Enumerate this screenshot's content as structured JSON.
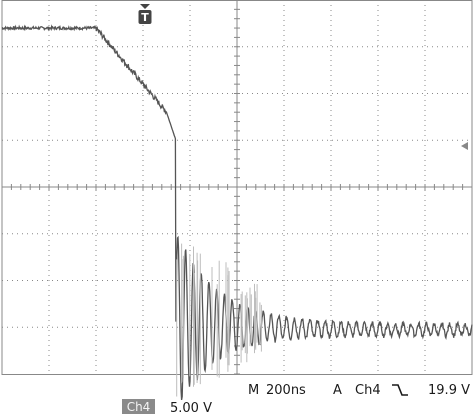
{
  "status_bar": {
    "timebase_prefix": "M",
    "timebase_value": "200ns",
    "trigger_mode": "A",
    "trigger_channel": "Ch4",
    "trigger_slope_icon": "falling-edge-icon",
    "trigger_level": "19.9 V",
    "channel_badge": "Ch4",
    "channel_scale": "5.00 V"
  },
  "markers": {
    "trigger_position_marker": "T",
    "trigger_position_icon": "trigger-position-icon",
    "trigger_level_icon": "trigger-level-arrow-icon"
  },
  "colors": {
    "background": "#ffffff",
    "grid": "#888888",
    "trace": "#555555",
    "trace_light": "#bdbdbd",
    "badge_bg": "#8a8a8a"
  },
  "waveform": {
    "channel": "Ch4",
    "time_per_division_ns": 200,
    "volts_per_division": 5.0,
    "divisions_x": 10,
    "divisions_y": 8,
    "description_points_ns_V": [
      [
        0,
        17.0
      ],
      [
        400,
        17.0
      ],
      [
        700,
        8.0
      ],
      [
        750,
        -5.0
      ],
      [
        800,
        1.0
      ],
      [
        900,
        -10.0
      ],
      [
        1000,
        -12.0
      ],
      [
        1100,
        -14.0
      ],
      [
        1500,
        -14.8
      ],
      [
        2000,
        -15.0
      ]
    ]
  }
}
